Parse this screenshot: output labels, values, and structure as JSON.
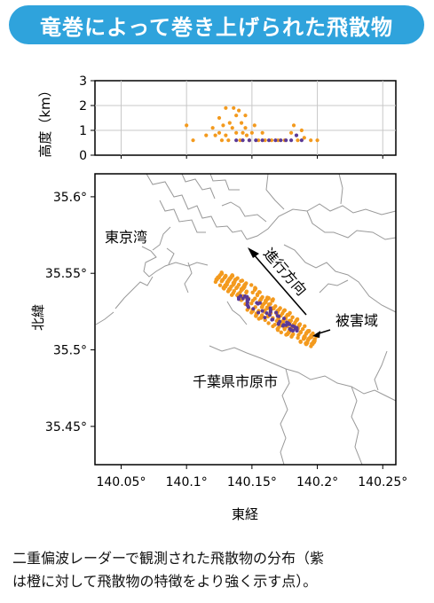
{
  "header": {
    "title": "竜巻によって巻き上げられた飛散物"
  },
  "chart_data": [
    {
      "type": "scatter",
      "panel": "altitude",
      "ylabel": "高度（km）",
      "xlim": [
        140.03,
        140.26
      ],
      "ylim": [
        0,
        3
      ],
      "yticks": [
        "0",
        "1",
        "2",
        "3"
      ],
      "grid": true,
      "series": [
        {
          "color": "#f39a1e",
          "points": [
            [
              140.1,
              1.2
            ],
            [
              140.105,
              0.6
            ],
            [
              140.115,
              0.8
            ],
            [
              140.12,
              1.1
            ],
            [
              140.122,
              0.8
            ],
            [
              140.125,
              1.5
            ],
            [
              140.127,
              0.6
            ],
            [
              140.13,
              1.9
            ],
            [
              140.13,
              0.8
            ],
            [
              140.133,
              1.3
            ],
            [
              140.135,
              1.1
            ],
            [
              140.138,
              1.6
            ],
            [
              140.138,
              0.9
            ],
            [
              140.14,
              1.8
            ],
            [
              140.142,
              1.3
            ],
            [
              140.143,
              0.9
            ],
            [
              140.145,
              1.6
            ],
            [
              140.145,
              1.1
            ],
            [
              140.148,
              0.6
            ],
            [
              140.15,
              0.9
            ],
            [
              140.152,
              1.2
            ],
            [
              140.155,
              0.6
            ],
            [
              140.158,
              0.9
            ],
            [
              140.16,
              0.6
            ],
            [
              140.165,
              0.6
            ],
            [
              140.17,
              0.6
            ],
            [
              140.175,
              0.6
            ],
            [
              140.18,
              0.9
            ],
            [
              140.182,
              1.2
            ],
            [
              140.185,
              0.6
            ],
            [
              140.188,
              1.0
            ],
            [
              140.19,
              0.7
            ],
            [
              140.195,
              0.6
            ],
            [
              140.2,
              0.6
            ],
            [
              140.125,
              0.9
            ],
            [
              140.128,
              1.2
            ],
            [
              140.132,
              0.6
            ],
            [
              140.136,
              1.9
            ],
            [
              140.141,
              0.6
            ],
            [
              140.146,
              0.8
            ]
          ]
        },
        {
          "color": "#5b3a96",
          "points": [
            [
              140.138,
              0.6
            ],
            [
              140.143,
              0.6
            ],
            [
              140.148,
              0.6
            ],
            [
              140.153,
              0.6
            ],
            [
              140.158,
              0.6
            ],
            [
              140.163,
              0.6
            ],
            [
              140.168,
              0.6
            ],
            [
              140.172,
              0.6
            ],
            [
              140.176,
              0.6
            ],
            [
              140.18,
              0.6
            ],
            [
              140.184,
              0.8
            ],
            [
              140.188,
              0.6
            ]
          ]
        }
      ]
    },
    {
      "type": "scatter",
      "panel": "map",
      "xlabel": "東経",
      "ylabel": "北緯",
      "xlim": [
        140.03,
        140.26
      ],
      "ylim": [
        35.425,
        35.615
      ],
      "xticks": [
        "140.05°",
        "140.1°",
        "140.15°",
        "140.2°",
        "140.25°"
      ],
      "yticks": [
        "35.45°",
        "35.5°",
        "35.55°",
        "35.6°"
      ],
      "annotations": [
        "東京湾",
        "千葉県市原市",
        "進行方向",
        "被害域"
      ],
      "series": [
        {
          "color": "#f39a1e",
          "band_from": [
            140.125,
            35.548
          ],
          "band_to": [
            140.197,
            35.505
          ],
          "count": 300
        },
        {
          "color": "#5b3a96",
          "band_from": [
            140.14,
            35.535
          ],
          "band_to": [
            140.185,
            35.512
          ],
          "count": 55
        }
      ]
    }
  ],
  "caption": {
    "line1": "二重偏波レーダーで観測された飛散物の分布（紫",
    "line2": "は橙に対して飛散物の特徴をより強く示す点）。"
  }
}
